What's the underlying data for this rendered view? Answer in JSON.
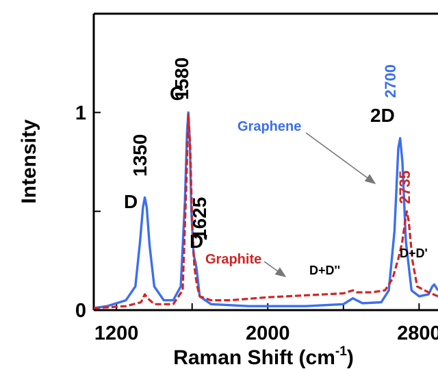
{
  "chart_data": {
    "type": "line",
    "xlabel_main": "Raman Shift (cm",
    "xlabel_sup": "-1",
    "xlabel_end": ")",
    "ylabel": "Intensity",
    "xlim": [
      1080,
      2900
    ],
    "ylim": [
      0,
      1.5
    ],
    "x_ticks": [
      1200,
      2000,
      2800
    ],
    "x_tick_labels": [
      "1200",
      "2000",
      "2800"
    ],
    "y_ticks": [
      0,
      1
    ],
    "y_tick_labels": [
      "0",
      "1"
    ],
    "series": [
      {
        "name": "Graphene",
        "color": "#3b6ff0",
        "points": [
          [
            1080,
            0.01
          ],
          [
            1150,
            0.02
          ],
          [
            1250,
            0.05
          ],
          [
            1300,
            0.12
          ],
          [
            1325,
            0.35
          ],
          [
            1340,
            0.52
          ],
          [
            1350,
            0.57
          ],
          [
            1360,
            0.52
          ],
          [
            1375,
            0.33
          ],
          [
            1400,
            0.12
          ],
          [
            1450,
            0.05
          ],
          [
            1500,
            0.05
          ],
          [
            1540,
            0.12
          ],
          [
            1562,
            0.55
          ],
          [
            1573,
            0.9
          ],
          [
            1580,
            1.0
          ],
          [
            1588,
            0.85
          ],
          [
            1596,
            0.5
          ],
          [
            1608,
            0.28
          ],
          [
            1618,
            0.24
          ],
          [
            1625,
            0.2
          ],
          [
            1640,
            0.07
          ],
          [
            1700,
            0.03
          ],
          [
            1900,
            0.02
          ],
          [
            2200,
            0.02
          ],
          [
            2400,
            0.03
          ],
          [
            2450,
            0.06
          ],
          [
            2470,
            0.05
          ],
          [
            2500,
            0.035
          ],
          [
            2600,
            0.04
          ],
          [
            2640,
            0.1
          ],
          [
            2670,
            0.4
          ],
          [
            2690,
            0.82
          ],
          [
            2700,
            0.87
          ],
          [
            2712,
            0.75
          ],
          [
            2730,
            0.35
          ],
          [
            2760,
            0.1
          ],
          [
            2800,
            0.07
          ],
          [
            2850,
            0.08
          ],
          [
            2870,
            0.12
          ],
          [
            2880,
            0.13
          ],
          [
            2900,
            0.1
          ]
        ]
      },
      {
        "name": "Graphite",
        "color": "#d12525",
        "points": [
          [
            1080,
            0.01
          ],
          [
            1250,
            0.02
          ],
          [
            1330,
            0.04
          ],
          [
            1350,
            0.08
          ],
          [
            1365,
            0.06
          ],
          [
            1400,
            0.03
          ],
          [
            1500,
            0.03
          ],
          [
            1550,
            0.1
          ],
          [
            1568,
            0.6
          ],
          [
            1580,
            0.99
          ],
          [
            1590,
            0.82
          ],
          [
            1600,
            0.45
          ],
          [
            1612,
            0.22
          ],
          [
            1625,
            0.13
          ],
          [
            1640,
            0.07
          ],
          [
            1700,
            0.05
          ],
          [
            1800,
            0.05
          ],
          [
            2000,
            0.065
          ],
          [
            2200,
            0.075
          ],
          [
            2400,
            0.085
          ],
          [
            2450,
            0.1
          ],
          [
            2470,
            0.09
          ],
          [
            2550,
            0.09
          ],
          [
            2620,
            0.1
          ],
          [
            2660,
            0.16
          ],
          [
            2690,
            0.26
          ],
          [
            2710,
            0.34
          ],
          [
            2725,
            0.44
          ],
          [
            2735,
            0.5
          ],
          [
            2745,
            0.45
          ],
          [
            2765,
            0.25
          ],
          [
            2790,
            0.12
          ],
          [
            2850,
            0.09
          ],
          [
            2900,
            0.07
          ]
        ]
      }
    ],
    "peak_labels": {
      "d": "D",
      "d_num": "1350",
      "g": "G",
      "g_num": "1580",
      "dprime": "D'",
      "dprime_num": "1625",
      "twod": "2D",
      "twod_num_graphene": "2700",
      "twod_num_graphite": "2735",
      "dd2": "D+D''",
      "dd1": "D+D'"
    },
    "series_labels": {
      "graphene": "Graphene",
      "graphite": "Graphite"
    },
    "legend": "none",
    "grid": false
  }
}
